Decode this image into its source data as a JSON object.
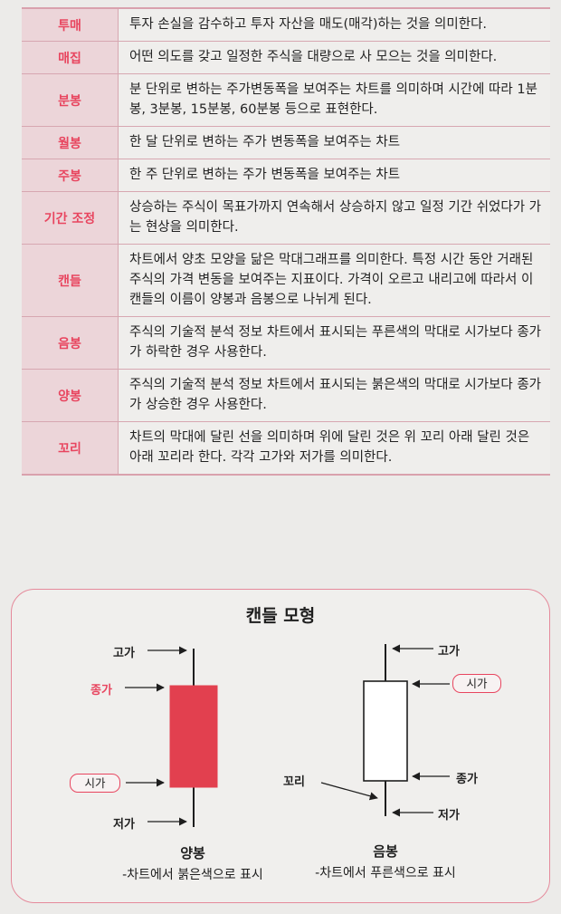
{
  "glossary": [
    {
      "term": "투매",
      "definition": "투자 손실을 감수하고 투자 자산을 매도(매각)하는 것을 의미한다."
    },
    {
      "term": "매집",
      "definition": "어떤 의도를 갖고 일정한 주식을 대량으로 사 모으는 것을 의미한다."
    },
    {
      "term": "분봉",
      "definition": "분 단위로 변하는 주가변동폭을 보여주는 차트를 의미하며 시간에 따라 1분봉, 3분봉, 15분봉, 60분봉 등으로 표현한다."
    },
    {
      "term": "월봉",
      "definition": "한 달 단위로 변하는 주가 변동폭을 보여주는 차트"
    },
    {
      "term": "주봉",
      "definition": "한 주 단위로 변하는 주가 변동폭을 보여주는 차트"
    },
    {
      "term": "기간 조정",
      "definition": "상승하는 주식이 목표가까지 연속해서 상승하지 않고 일정 기간 쉬었다가 가는 현상을 의미한다."
    },
    {
      "term": "캔들",
      "definition": "차트에서 양초 모양을 닮은 막대그래프를 의미한다. 특정 시간 동안 거래된 주식의 가격 변동을 보여주는 지표이다. 가격이 오르고 내리고에 따라서 이 캔들의 이름이 양봉과 음봉으로 나뉘게 된다."
    },
    {
      "term": "음봉",
      "definition": "주식의 기술적 분석 정보 차트에서 표시되는 푸른색의 막대로 시가보다 종가가 하락한 경우 사용한다."
    },
    {
      "term": "양봉",
      "definition": "주식의 기술적 분석 정보 차트에서 표시되는 붉은색의 막대로 시가보다 종가가 상승한 경우 사용한다."
    },
    {
      "term": "꼬리",
      "definition": "차트의 막대에 달린 선을 의미하며 위에 달린 것은 위 꼬리 아래 달린 것은 아래 꼬리라 한다. 각각 고가와 저가를 의미한다."
    }
  ],
  "diagram": {
    "title": "캔들 모형",
    "bullish": {
      "high": "고가",
      "close": "종가",
      "open": "시가",
      "low": "저가",
      "name": "양봉",
      "description": "-차트에서 붉은색으로 표시",
      "fill_color": "#e2404f"
    },
    "bearish": {
      "high": "고가",
      "open": "시가",
      "close": "종가",
      "wick": "꼬리",
      "low": "저가",
      "name": "음봉",
      "description": "-차트에서 푸른색으로 표시",
      "fill_color": "#ffffff"
    },
    "accent_color": "#e8455f"
  }
}
